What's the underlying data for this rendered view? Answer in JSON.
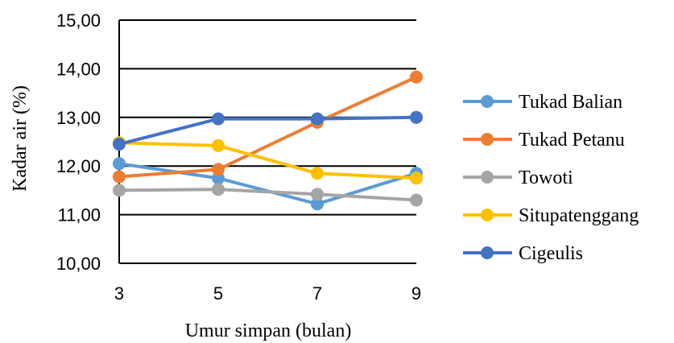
{
  "chart_data": {
    "type": "line",
    "title": "",
    "xlabel": "Umur simpan (bulan)",
    "ylabel": "Kadar air (%)",
    "x": [
      3,
      5,
      7,
      9
    ],
    "x_tick_labels": [
      "3",
      "5",
      "7",
      "9"
    ],
    "ylim": [
      10,
      15
    ],
    "y_tick_labels": [
      "10,00",
      "11,00",
      "12,00",
      "13,00",
      "14,00",
      "15,00"
    ],
    "grid": "horizontal",
    "legend_position": "right",
    "series": [
      {
        "name": "Tukad Balian",
        "color": "#5B9BD5",
        "values": [
          12.05,
          11.75,
          11.22,
          11.85
        ]
      },
      {
        "name": "Tukad Petanu",
        "color": "#ED7D31",
        "values": [
          11.78,
          11.93,
          12.9,
          13.83
        ]
      },
      {
        "name": "Towoti",
        "color": "#A5A5A5",
        "values": [
          11.5,
          11.52,
          11.42,
          11.3
        ]
      },
      {
        "name": "Situpatenggang",
        "color": "#FFC000",
        "values": [
          12.48,
          12.42,
          11.85,
          11.75
        ]
      },
      {
        "name": "Cigeulis",
        "color": "#4472C4",
        "values": [
          12.45,
          12.97,
          12.97,
          13.0
        ]
      }
    ]
  }
}
